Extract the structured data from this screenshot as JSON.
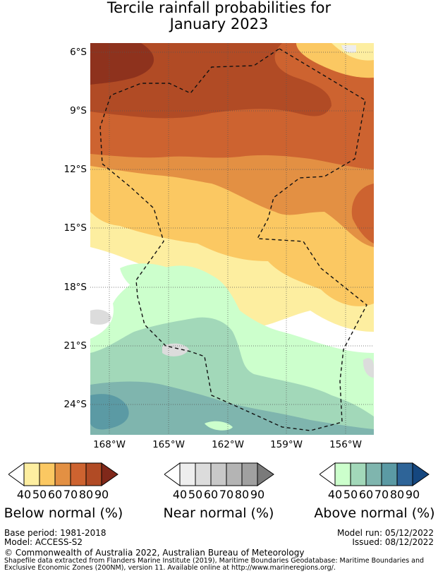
{
  "title_line1": "Tercile rainfall probabilities for",
  "title_line2": "January 2023",
  "lat_labels": [
    "6°S",
    "9°S",
    "12°S",
    "15°S",
    "18°S",
    "21°S",
    "24°S"
  ],
  "lon_labels": [
    "168°W",
    "165°W",
    "162°W",
    "159°W",
    "156°W"
  ],
  "legends": [
    {
      "title": "Below normal (%)",
      "ticks": [
        "40",
        "50",
        "60",
        "70",
        "80",
        "90"
      ],
      "colors": [
        "#fdeea0",
        "#fbc862",
        "#e39043",
        "#cd6330",
        "#b14b25",
        "#80281a"
      ],
      "icon": "below-normal-colorbar"
    },
    {
      "title": "Near normal (%)",
      "ticks": [
        "40",
        "50",
        "60",
        "70",
        "80",
        "90"
      ],
      "colors": [
        "#eeeeee",
        "#dcdcdc",
        "#c8c8c8",
        "#b4b4b4",
        "#a0a0a0",
        "#7a7a7a"
      ],
      "icon": "near-normal-colorbar"
    },
    {
      "title": "Above normal (%)",
      "ticks": [
        "40",
        "50",
        "60",
        "70",
        "80",
        "90"
      ],
      "colors": [
        "#ccffcc",
        "#a2d8b9",
        "#7fb5ae",
        "#5b9aa4",
        "#2e6498",
        "#15477f"
      ],
      "icon": "above-normal-colorbar"
    }
  ],
  "footer": {
    "base_period": "Base period: 1981-2018",
    "model": "Model: ACCESS-S2",
    "model_run": "Model run: 05/12/2022",
    "issued": "Issued: 08/12/2022",
    "copyright": "© Commonwealth of Australia 2022, Australian Bureau of Meteorology",
    "shapefile_line1": "Shapefile data extracted from Flanders Marine Institute (2019), Maritime Boundaries Geodatabase: Maritime Boundaries and",
    "shapefile_line2": "Exclusive Economic Zones (200NM), version 11. Available online at http://www.marineregions.org/."
  }
}
